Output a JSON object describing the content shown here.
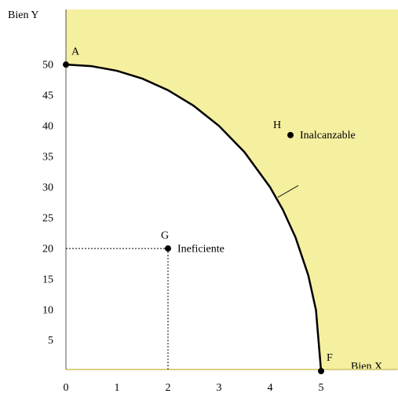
{
  "chart_data": {
    "type": "line",
    "x_label": "Bien X",
    "y_label": "Bien Y",
    "xlim": [
      0,
      6.5
    ],
    "ylim": [
      0,
      59
    ],
    "xticks": [
      0,
      1,
      2,
      3,
      4,
      5
    ],
    "yticks": [
      5,
      10,
      15,
      20,
      25,
      30,
      35,
      40,
      45,
      50
    ],
    "region_color": "#f5efa0",
    "x": [
      0,
      0.5,
      1,
      1.5,
      2,
      2.5,
      3,
      3.5,
      4,
      4.25,
      4.5,
      4.75,
      4.9,
      5
    ],
    "series": [
      {
        "color": "#000000",
        "values": [
          50,
          49.75,
          48.99,
          47.7,
          45.83,
          43.3,
          40,
          35.71,
          30,
          26.34,
          21.79,
          15.61,
          9.95,
          0
        ]
      }
    ],
    "points": [
      {
        "label": "A",
        "x": 0,
        "y": 50
      },
      {
        "label": "F",
        "x": 5,
        "y": 0
      },
      {
        "label": "G",
        "x": 2,
        "y": 20,
        "annotation": "Ineficiente"
      },
      {
        "label": "H",
        "x": 4.4,
        "y": 38.5,
        "annotation": "Inalcanzable"
      }
    ]
  }
}
